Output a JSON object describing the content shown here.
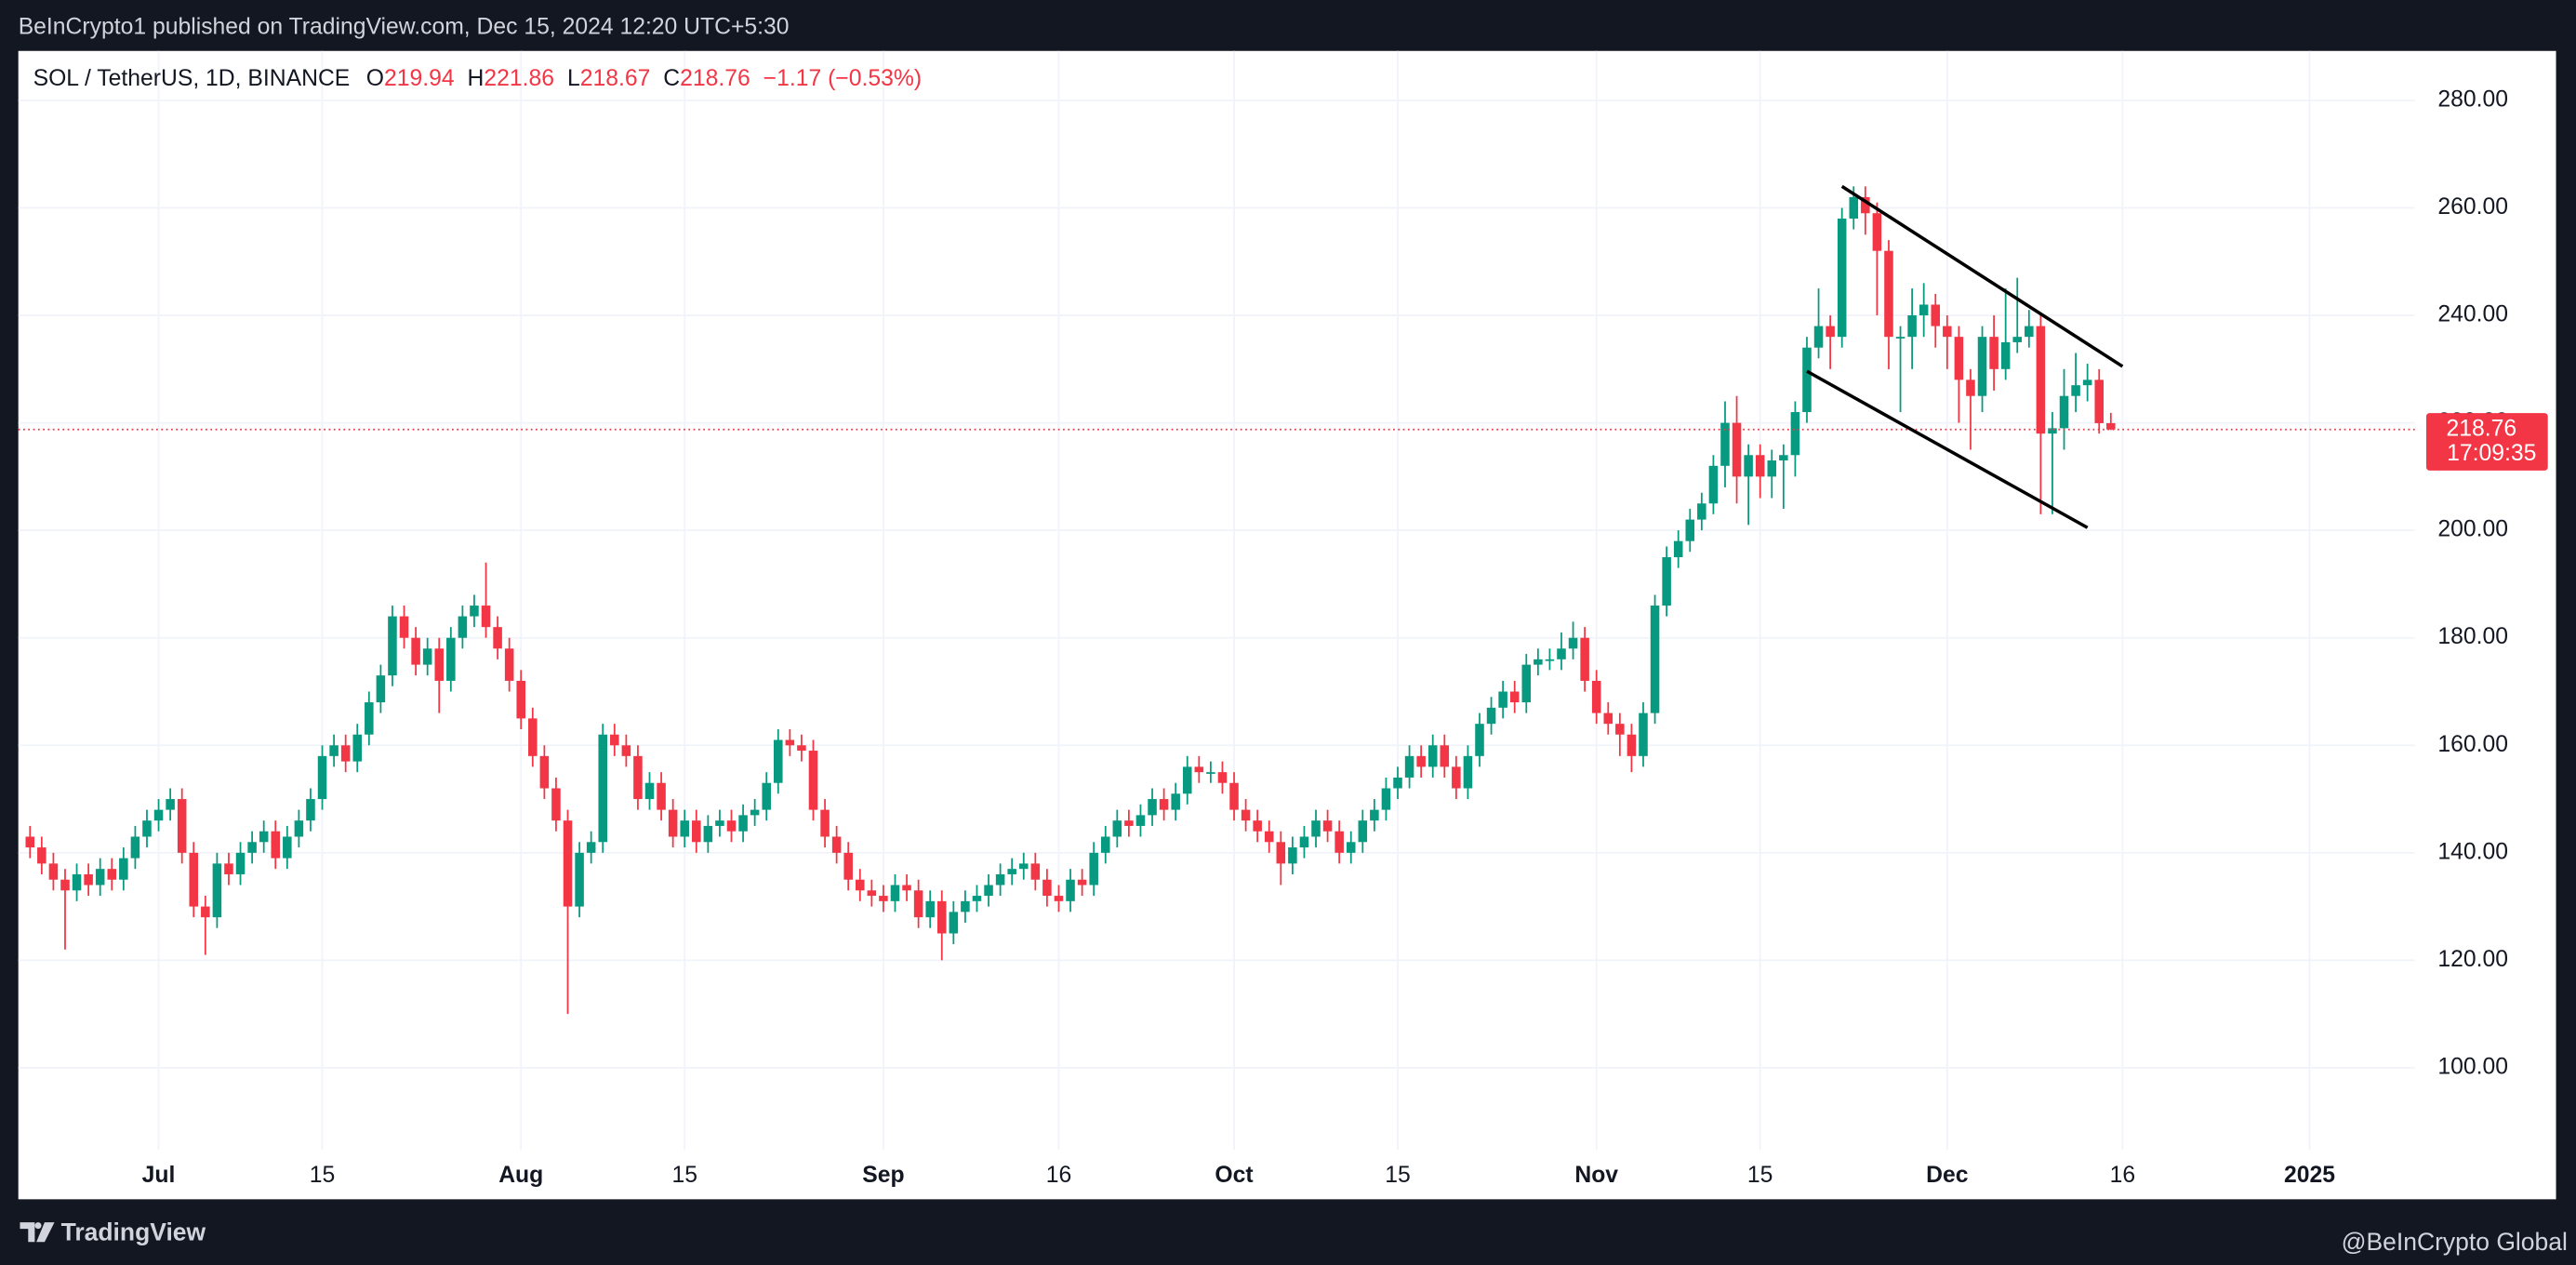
{
  "top_bar": {
    "published": "BeInCrypto1 published on TradingView.com, Dec 15, 2024 12:20 UTC+5:30"
  },
  "footer": {
    "brand": "TradingView",
    "credit": "@BeInCrypto Global"
  },
  "chart_data": {
    "type": "candlestick",
    "symbol": "SOL / TetherUS, 1D, BINANCE",
    "ohlc_labels": [
      "O",
      "H",
      "L",
      "C"
    ],
    "change": "−1.17 (−0.53%)",
    "countdown": "17:09:35",
    "colors": {
      "up": "#089981",
      "down": "#f23645"
    },
    "grid": true,
    "x": [
      "2024-06-20",
      "2024-06-21",
      "2024-06-22",
      "2024-06-23",
      "2024-06-24",
      "2024-06-25",
      "2024-06-26",
      "2024-06-27",
      "2024-06-28",
      "2024-06-29",
      "2024-06-30",
      "2024-07-01",
      "2024-07-02",
      "2024-07-03",
      "2024-07-04",
      "2024-07-05",
      "2024-07-06",
      "2024-07-07",
      "2024-07-08",
      "2024-07-09",
      "2024-07-10",
      "2024-07-11",
      "2024-07-12",
      "2024-07-13",
      "2024-07-14",
      "2024-07-15",
      "2024-07-16",
      "2024-07-17",
      "2024-07-18",
      "2024-07-19",
      "2024-07-20",
      "2024-07-21",
      "2024-07-22",
      "2024-07-23",
      "2024-07-24",
      "2024-07-25",
      "2024-07-26",
      "2024-07-27",
      "2024-07-28",
      "2024-07-29",
      "2024-07-30",
      "2024-07-31",
      "2024-08-01",
      "2024-08-02",
      "2024-08-03",
      "2024-08-04",
      "2024-08-05",
      "2024-08-06",
      "2024-08-07",
      "2024-08-08",
      "2024-08-09",
      "2024-08-10",
      "2024-08-11",
      "2024-08-12",
      "2024-08-13",
      "2024-08-14",
      "2024-08-15",
      "2024-08-16",
      "2024-08-17",
      "2024-08-18",
      "2024-08-19",
      "2024-08-20",
      "2024-08-21",
      "2024-08-22",
      "2024-08-23",
      "2024-08-24",
      "2024-08-25",
      "2024-08-26",
      "2024-08-27",
      "2024-08-28",
      "2024-08-29",
      "2024-08-30",
      "2024-08-31",
      "2024-09-01",
      "2024-09-02",
      "2024-09-03",
      "2024-09-04",
      "2024-09-05",
      "2024-09-06",
      "2024-09-07",
      "2024-09-08",
      "2024-09-09",
      "2024-09-10",
      "2024-09-11",
      "2024-09-12",
      "2024-09-13",
      "2024-09-14",
      "2024-09-15",
      "2024-09-16",
      "2024-09-17",
      "2024-09-18",
      "2024-09-19",
      "2024-09-20",
      "2024-09-21",
      "2024-09-22",
      "2024-09-23",
      "2024-09-24",
      "2024-09-25",
      "2024-09-26",
      "2024-09-27",
      "2024-09-28",
      "2024-09-29",
      "2024-09-30",
      "2024-10-01",
      "2024-10-02",
      "2024-10-03",
      "2024-10-04",
      "2024-10-05",
      "2024-10-06",
      "2024-10-07",
      "2024-10-08",
      "2024-10-09",
      "2024-10-10",
      "2024-10-11",
      "2024-10-12",
      "2024-10-13",
      "2024-10-14",
      "2024-10-15",
      "2024-10-16",
      "2024-10-17",
      "2024-10-18",
      "2024-10-19",
      "2024-10-20",
      "2024-10-21",
      "2024-10-22",
      "2024-10-23",
      "2024-10-24",
      "2024-10-25",
      "2024-10-26",
      "2024-10-27",
      "2024-10-28",
      "2024-10-29",
      "2024-10-30",
      "2024-10-31",
      "2024-11-01",
      "2024-11-02",
      "2024-11-03",
      "2024-11-04",
      "2024-11-05",
      "2024-11-06",
      "2024-11-07",
      "2024-11-08",
      "2024-11-09",
      "2024-11-10",
      "2024-11-11",
      "2024-11-12",
      "2024-11-13",
      "2024-11-14",
      "2024-11-15",
      "2024-11-16",
      "2024-11-17",
      "2024-11-18",
      "2024-11-19",
      "2024-11-20",
      "2024-11-21",
      "2024-11-22",
      "2024-11-23",
      "2024-11-24",
      "2024-11-25",
      "2024-11-26",
      "2024-11-27",
      "2024-11-28",
      "2024-11-29",
      "2024-11-30",
      "2024-12-01",
      "2024-12-02",
      "2024-12-03",
      "2024-12-04",
      "2024-12-05",
      "2024-12-06",
      "2024-12-07",
      "2024-12-08",
      "2024-12-09",
      "2024-12-10",
      "2024-12-11",
      "2024-12-12",
      "2024-12-13",
      "2024-12-14",
      "2024-12-15"
    ],
    "open": [
      143,
      141,
      138,
      135,
      133,
      136,
      134,
      137,
      135,
      139,
      143,
      146,
      148,
      150,
      140,
      130,
      128,
      138,
      136,
      140,
      142,
      144,
      139,
      143,
      146,
      150,
      158,
      160,
      157,
      162,
      168,
      173,
      184,
      180,
      175,
      178,
      172,
      180,
      184,
      186,
      182,
      178,
      172,
      165,
      158,
      152,
      146,
      130,
      140,
      142,
      162,
      160,
      158,
      150,
      153,
      148,
      143,
      146,
      142,
      145,
      146,
      144,
      147,
      148,
      153,
      161,
      160,
      159,
      148,
      143,
      140,
      135,
      133,
      132,
      131,
      134,
      133,
      128,
      131,
      125,
      129,
      131,
      132,
      134,
      136,
      137,
      138,
      135,
      132,
      131,
      135,
      134,
      140,
      143,
      146,
      145,
      147,
      150,
      148,
      151,
      156,
      155,
      155,
      153,
      148,
      146,
      144,
      142,
      138,
      141,
      143,
      146,
      144,
      140,
      142,
      146,
      148,
      152,
      154,
      158,
      156,
      160,
      156,
      152,
      158,
      164,
      167,
      170,
      168,
      175,
      176,
      176,
      178,
      180,
      172,
      166,
      164,
      162,
      158,
      166,
      186,
      195,
      198,
      202,
      205,
      212,
      220,
      210,
      214,
      210,
      213,
      214,
      222,
      234,
      238,
      236,
      258,
      262,
      259,
      252,
      236,
      236,
      240,
      242,
      238,
      236,
      228,
      225,
      236,
      230,
      235,
      236,
      238,
      218,
      219,
      225,
      227,
      228,
      219.94
    ],
    "high": [
      145,
      143,
      140,
      137,
      138,
      138,
      139,
      139,
      141,
      145,
      148,
      150,
      152,
      152,
      142,
      132,
      140,
      140,
      142,
      144,
      146,
      146,
      145,
      148,
      152,
      160,
      162,
      162,
      164,
      170,
      175,
      186,
      186,
      182,
      180,
      180,
      182,
      186,
      188,
      194,
      184,
      180,
      174,
      167,
      160,
      154,
      148,
      142,
      144,
      164,
      164,
      162,
      160,
      155,
      155,
      150,
      148,
      148,
      147,
      148,
      148,
      149,
      150,
      155,
      163,
      163,
      162,
      161,
      150,
      145,
      142,
      137,
      135,
      134,
      136,
      136,
      135,
      133,
      133,
      131,
      133,
      134,
      136,
      138,
      139,
      140,
      140,
      137,
      134,
      137,
      137,
      142,
      145,
      148,
      148,
      149,
      152,
      152,
      153,
      158,
      158,
      157,
      157,
      155,
      150,
      148,
      146,
      144,
      143,
      145,
      148,
      148,
      146,
      144,
      148,
      150,
      154,
      156,
      160,
      160,
      162,
      162,
      158,
      160,
      166,
      169,
      172,
      172,
      177,
      178,
      178,
      181,
      183,
      182,
      174,
      168,
      166,
      164,
      168,
      188,
      197,
      200,
      204,
      207,
      214,
      224,
      225,
      216,
      216,
      215,
      216,
      224,
      236,
      245,
      240,
      260,
      264,
      264,
      261,
      254,
      238,
      245,
      246,
      244,
      240,
      238,
      230,
      238,
      240,
      245,
      247,
      241,
      240,
      222,
      230,
      233,
      231,
      230,
      221.86
    ],
    "low": [
      139,
      136,
      133,
      122,
      131,
      132,
      132,
      133,
      133,
      137,
      141,
      144,
      146,
      138,
      128,
      121,
      126,
      134,
      134,
      138,
      140,
      137,
      137,
      141,
      144,
      148,
      156,
      155,
      155,
      160,
      166,
      171,
      178,
      173,
      173,
      166,
      170,
      178,
      182,
      180,
      176,
      170,
      163,
      156,
      150,
      144,
      110,
      128,
      138,
      140,
      158,
      156,
      148,
      148,
      146,
      141,
      141,
      140,
      140,
      143,
      142,
      142,
      145,
      146,
      151,
      158,
      157,
      146,
      141,
      138,
      133,
      131,
      130,
      129,
      129,
      131,
      126,
      126,
      120,
      123,
      127,
      129,
      130,
      132,
      134,
      135,
      133,
      130,
      129,
      129,
      132,
      132,
      138,
      141,
      143,
      143,
      145,
      146,
      146,
      149,
      153,
      153,
      151,
      146,
      144,
      142,
      140,
      134,
      136,
      139,
      141,
      142,
      138,
      138,
      140,
      144,
      146,
      150,
      152,
      154,
      154,
      154,
      150,
      150,
      156,
      162,
      165,
      166,
      166,
      173,
      174,
      174,
      176,
      170,
      164,
      162,
      158,
      155,
      156,
      164,
      184,
      193,
      196,
      200,
      203,
      208,
      205,
      201,
      206,
      206,
      204,
      210,
      220,
      232,
      230,
      234,
      256,
      255,
      240,
      230,
      222,
      230,
      236,
      234,
      230,
      220,
      215,
      222,
      226,
      228,
      233,
      234,
      203,
      203,
      215,
      222,
      224,
      218,
      218.67
    ],
    "close": [
      141,
      138,
      135,
      133,
      136,
      134,
      137,
      135,
      139,
      143,
      146,
      148,
      150,
      140,
      130,
      128,
      138,
      136,
      140,
      142,
      144,
      139,
      143,
      146,
      150,
      158,
      160,
      157,
      162,
      168,
      173,
      184,
      180,
      175,
      178,
      172,
      180,
      184,
      186,
      182,
      178,
      172,
      165,
      158,
      152,
      146,
      130,
      140,
      142,
      162,
      160,
      158,
      150,
      153,
      148,
      143,
      146,
      142,
      145,
      146,
      144,
      147,
      148,
      153,
      161,
      160,
      159,
      148,
      143,
      140,
      135,
      133,
      132,
      131,
      134,
      133,
      128,
      131,
      125,
      129,
      131,
      132,
      134,
      136,
      137,
      138,
      135,
      132,
      131,
      135,
      134,
      140,
      143,
      146,
      145,
      147,
      150,
      148,
      151,
      156,
      155,
      155,
      153,
      148,
      146,
      144,
      142,
      138,
      141,
      143,
      146,
      144,
      140,
      142,
      146,
      148,
      152,
      154,
      158,
      156,
      160,
      156,
      152,
      158,
      164,
      167,
      170,
      168,
      175,
      176,
      176,
      178,
      180,
      172,
      166,
      164,
      162,
      158,
      166,
      186,
      195,
      198,
      202,
      205,
      212,
      220,
      210,
      214,
      210,
      213,
      214,
      222,
      234,
      238,
      236,
      258,
      262,
      259,
      252,
      236,
      236,
      240,
      242,
      238,
      236,
      228,
      225,
      236,
      230,
      235,
      236,
      238,
      218,
      219,
      225,
      227,
      228,
      219.94,
      218.76
    ],
    "trend_lines": [
      {
        "x": [
          "2024-11-22",
          "2024-12-16"
        ],
        "y": [
          264,
          230.5
        ]
      },
      {
        "x": [
          "2024-11-19",
          "2024-12-13"
        ],
        "y": [
          229.6,
          200.5
        ]
      }
    ],
    "xlim": [
      "2024-06-19",
      "2025-01-10"
    ],
    "xticks": [
      {
        "value": "2024-07-01",
        "label": "Jul"
      },
      {
        "value": "2024-07-15",
        "label": "15"
      },
      {
        "value": "2024-08-01",
        "label": "Aug"
      },
      {
        "value": "2024-08-15",
        "label": "15"
      },
      {
        "value": "2024-09-01",
        "label": "Sep"
      },
      {
        "value": "2024-09-16",
        "label": "16"
      },
      {
        "value": "2024-10-01",
        "label": "Oct"
      },
      {
        "value": "2024-10-15",
        "label": "15"
      },
      {
        "value": "2024-11-01",
        "label": "Nov"
      },
      {
        "value": "2024-11-15",
        "label": "15"
      },
      {
        "value": "2024-12-01",
        "label": "Dec"
      },
      {
        "value": "2024-12-16",
        "label": "16"
      },
      {
        "value": "2025-01-01",
        "label": "2025"
      }
    ],
    "ylim": [
      84.7,
      289.2
    ],
    "yticks": [
      {
        "value": 100,
        "label": "100.00"
      },
      {
        "value": 120,
        "label": "120.00"
      },
      {
        "value": 140,
        "label": "140.00"
      },
      {
        "value": 160,
        "label": "160.00"
      },
      {
        "value": 180,
        "label": "180.00"
      },
      {
        "value": 200,
        "label": "200.00"
      },
      {
        "value": 220,
        "label": "220.00"
      },
      {
        "value": 240,
        "label": "240.00"
      },
      {
        "value": 260,
        "label": "260.00"
      },
      {
        "value": 280,
        "label": "280.00"
      }
    ]
  }
}
